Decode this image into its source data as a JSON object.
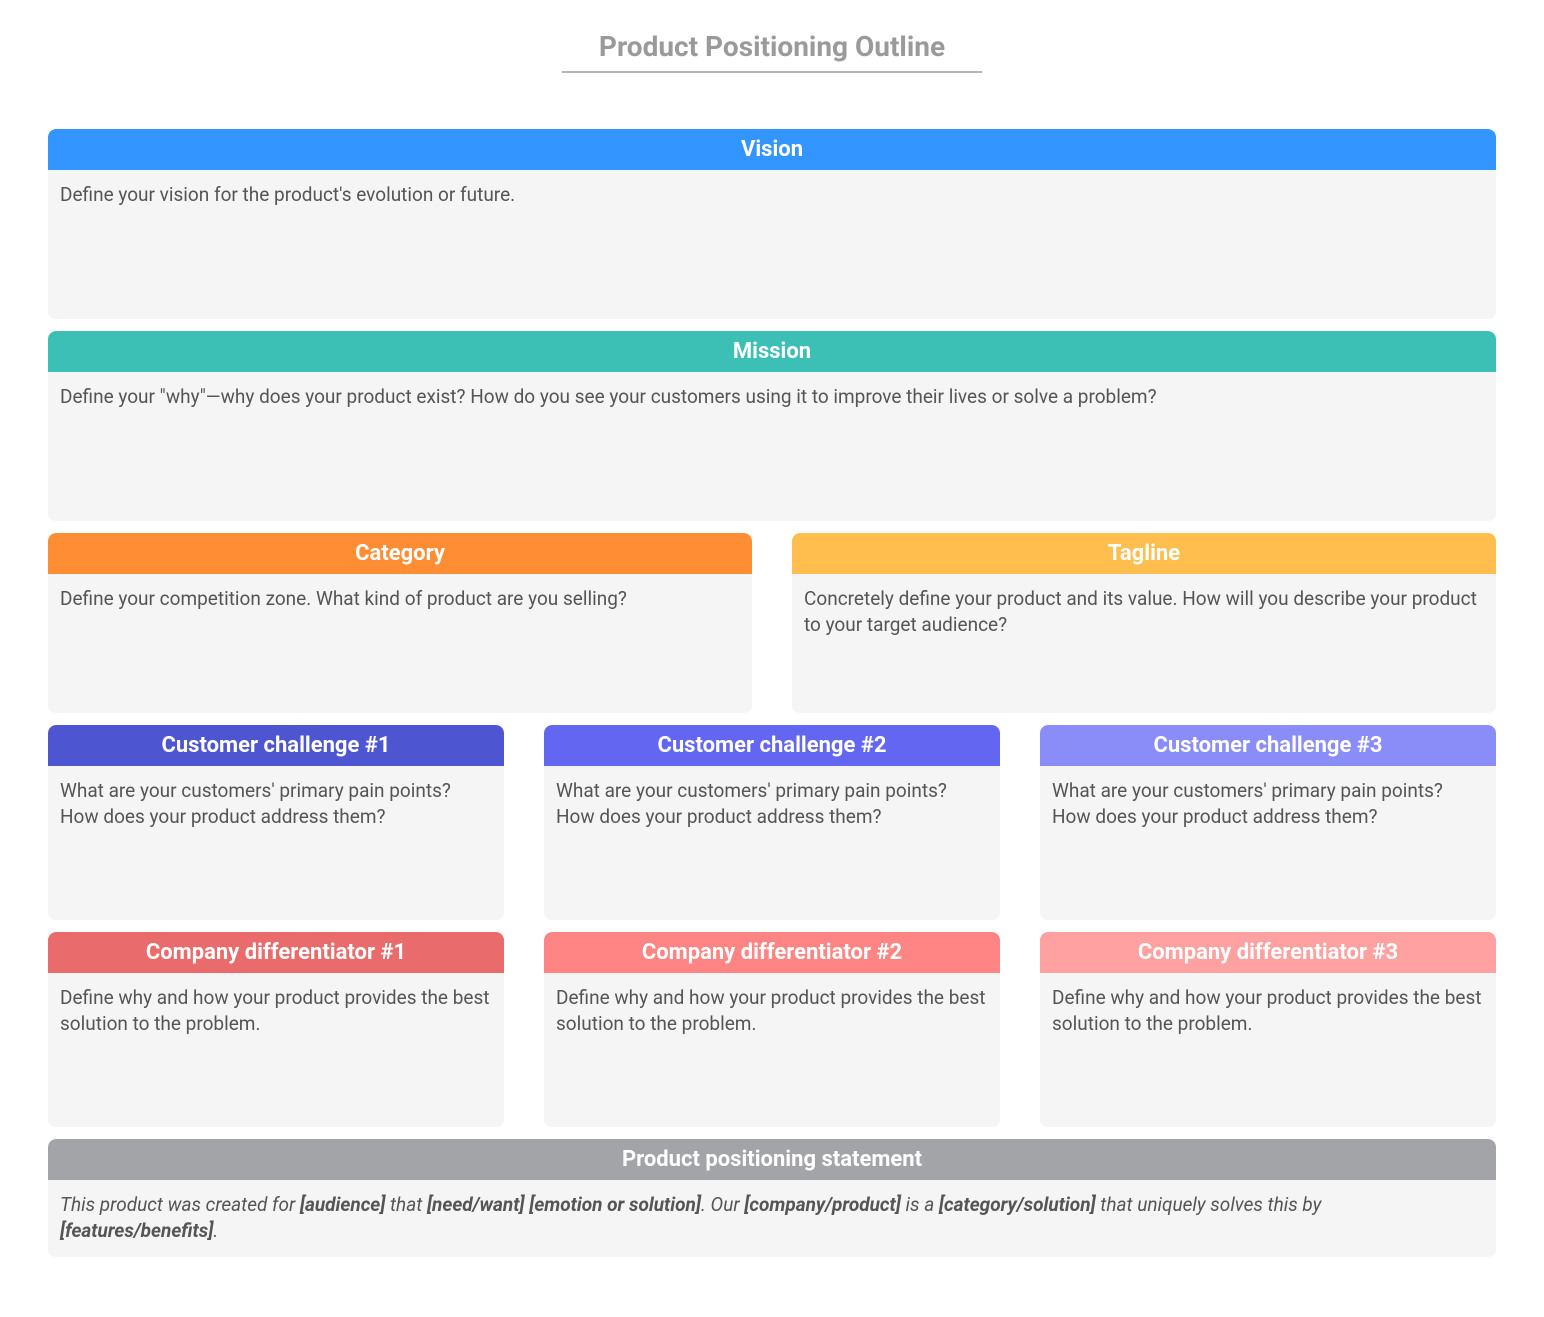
{
  "title": "Product Positioning Outline",
  "colors": {
    "vision": "#3395ff",
    "mission": "#3cbfb4",
    "category": "#ff8d33",
    "tagline": "#ffbe4d",
    "challenge1": "#4e55d1",
    "challenge2": "#6366f1",
    "challenge3": "#8a8df7",
    "diff1": "#ea6b6b",
    "diff2": "#ff8585",
    "diff3": "#ffa1a1",
    "statement": "#a3a4a7",
    "card_bg": "#f5f5f5",
    "body_text": "#555555",
    "title_text": "#9a9a9a"
  },
  "cards": {
    "vision": {
      "title": "Vision",
      "body": "Define your vision for the product's evolution or future."
    },
    "mission": {
      "title": "Mission",
      "body": "Define your \"why\"—why does your product exist? How do you see your customers using it to improve their lives or solve a problem?"
    },
    "category": {
      "title": "Category",
      "body": "Define your competition zone. What kind of product are you selling?"
    },
    "tagline": {
      "title": "Tagline",
      "body": "Concretely define your product and its value. How will you describe your product to your target audience?"
    },
    "challenge1": {
      "title": "Customer challenge #1",
      "body": "What are your customers' primary pain points? How does your product address them?"
    },
    "challenge2": {
      "title": "Customer challenge #2",
      "body": "What are your customers' primary pain points? How does your product address them?"
    },
    "challenge3": {
      "title": "Customer challenge #3",
      "body": "What are your customers' primary pain points? How does your product address them?"
    },
    "diff1": {
      "title": "Company differentiator #1",
      "body": "Define why and how your product provides the best solution to the problem."
    },
    "diff2": {
      "title": "Company differentiator #2",
      "body": "Define why and how your product provides the best solution to the problem."
    },
    "diff3": {
      "title": "Company differentiator #3",
      "body": "Define why and how your product provides the best solution to the problem."
    },
    "statement": {
      "title": "Product positioning statement",
      "body_parts": [
        {
          "t": "This product was created for ",
          "b": false
        },
        {
          "t": "[audience]",
          "b": true
        },
        {
          "t": " that ",
          "b": false
        },
        {
          "t": "[need/want] [emotion or solution]",
          "b": true
        },
        {
          "t": ". Our ",
          "b": false
        },
        {
          "t": "[company/product]",
          "b": true
        },
        {
          "t": " is a ",
          "b": false
        },
        {
          "t": "[category/solution]",
          "b": true
        },
        {
          "t": " that uniquely solves this by ",
          "b": false
        },
        {
          "t": "[features/benefits]",
          "b": true
        },
        {
          "t": ".",
          "b": false
        }
      ]
    }
  }
}
